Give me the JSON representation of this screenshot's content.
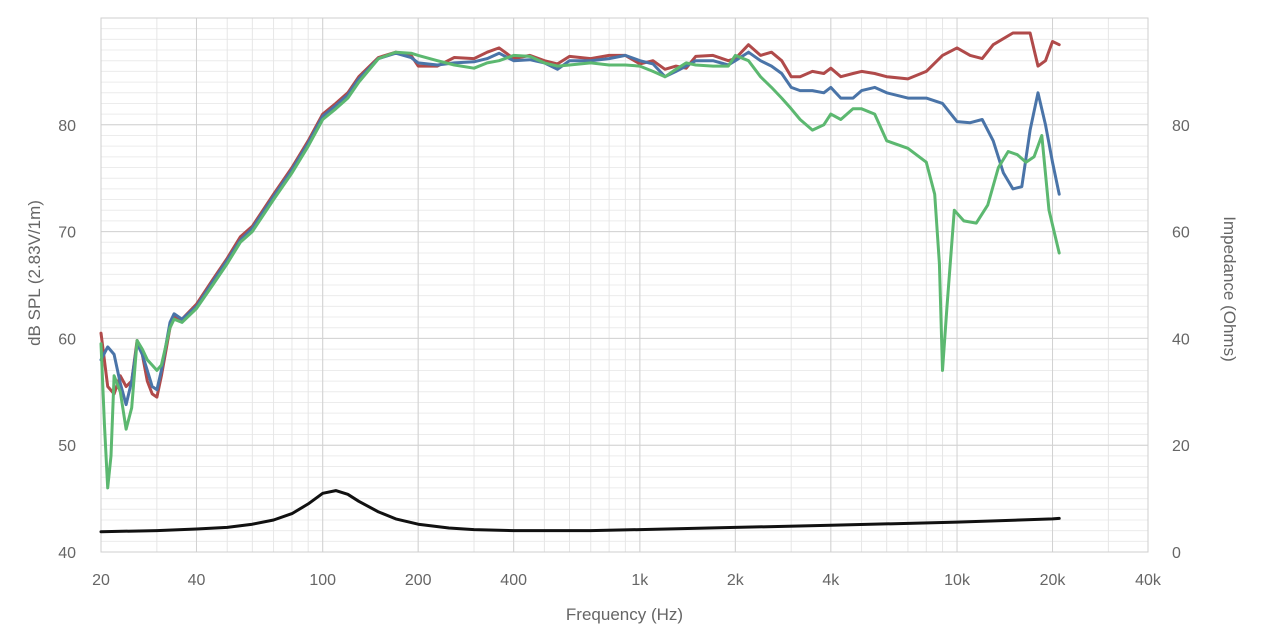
{
  "chart_data": {
    "type": "line",
    "title": "",
    "xlabel": "Frequency (Hz)",
    "ylabel": "dB SPL  (2.83V/1m)",
    "y2label": "Impedance (Ohms)",
    "x_scale": "log",
    "xlim": [
      20,
      40000
    ],
    "ylim": [
      40,
      90
    ],
    "y2lim": [
      0,
      100
    ],
    "grid": true,
    "legend": "none",
    "x_ticks": [
      20,
      40,
      100,
      200,
      400,
      1000,
      2000,
      4000,
      10000,
      20000,
      40000
    ],
    "x_tick_labels": [
      "20",
      "40",
      "100",
      "200",
      "400",
      "1k",
      "2k",
      "4k",
      "10k",
      "20k",
      "40k"
    ],
    "y_ticks": [
      40,
      50,
      60,
      70,
      80
    ],
    "y_tick_labels": [
      "40",
      "50",
      "60",
      "70",
      "80"
    ],
    "y2_ticks": [
      0,
      20,
      40,
      60,
      80
    ],
    "y2_tick_labels": [
      "0",
      "20",
      "40",
      "60",
      "80"
    ],
    "series": [
      {
        "color": "#b04a4a",
        "axis": "left",
        "points": [
          [
            20,
            60.5
          ],
          [
            21,
            55.5
          ],
          [
            22,
            54.8
          ],
          [
            23,
            56.5
          ],
          [
            24,
            55.5
          ],
          [
            25,
            56.0
          ],
          [
            26,
            59.8
          ],
          [
            27,
            58.5
          ],
          [
            28,
            56.0
          ],
          [
            29,
            54.8
          ],
          [
            30,
            54.5
          ],
          [
            31,
            56.5
          ],
          [
            33,
            61.0
          ],
          [
            34,
            62.0
          ],
          [
            36,
            61.8
          ],
          [
            40,
            63.2
          ],
          [
            45,
            65.5
          ],
          [
            50,
            67.5
          ],
          [
            55,
            69.5
          ],
          [
            60,
            70.5
          ],
          [
            70,
            73.5
          ],
          [
            80,
            76.0
          ],
          [
            90,
            78.5
          ],
          [
            100,
            81.0
          ],
          [
            110,
            82.0
          ],
          [
            120,
            83.0
          ],
          [
            130,
            84.5
          ],
          [
            150,
            86.3
          ],
          [
            170,
            86.8
          ],
          [
            190,
            86.5
          ],
          [
            200,
            85.5
          ],
          [
            230,
            85.5
          ],
          [
            260,
            86.3
          ],
          [
            300,
            86.2
          ],
          [
            330,
            86.8
          ],
          [
            360,
            87.2
          ],
          [
            400,
            86.2
          ],
          [
            450,
            86.5
          ],
          [
            500,
            86.0
          ],
          [
            550,
            85.7
          ],
          [
            600,
            86.4
          ],
          [
            700,
            86.2
          ],
          [
            800,
            86.5
          ],
          [
            900,
            86.5
          ],
          [
            1000,
            85.7
          ],
          [
            1100,
            86.0
          ],
          [
            1200,
            85.2
          ],
          [
            1300,
            85.5
          ],
          [
            1400,
            85.3
          ],
          [
            1500,
            86.4
          ],
          [
            1700,
            86.5
          ],
          [
            1900,
            86.0
          ],
          [
            2000,
            86.2
          ],
          [
            2200,
            87.5
          ],
          [
            2400,
            86.5
          ],
          [
            2600,
            86.8
          ],
          [
            2800,
            86.0
          ],
          [
            3000,
            84.5
          ],
          [
            3200,
            84.5
          ],
          [
            3500,
            85.0
          ],
          [
            3800,
            84.8
          ],
          [
            4000,
            85.3
          ],
          [
            4300,
            84.5
          ],
          [
            4700,
            84.8
          ],
          [
            5000,
            85.0
          ],
          [
            5500,
            84.8
          ],
          [
            6000,
            84.5
          ],
          [
            7000,
            84.3
          ],
          [
            8000,
            85.0
          ],
          [
            9000,
            86.5
          ],
          [
            10000,
            87.2
          ],
          [
            11000,
            86.5
          ],
          [
            12000,
            86.2
          ],
          [
            13000,
            87.5
          ],
          [
            15000,
            88.6
          ],
          [
            17000,
            88.6
          ],
          [
            18000,
            85.5
          ],
          [
            19000,
            86.0
          ],
          [
            20000,
            87.8
          ],
          [
            21000,
            87.5
          ]
        ]
      },
      {
        "color": "#4a74a8",
        "axis": "left",
        "points": [
          [
            20,
            58.0
          ],
          [
            21,
            59.2
          ],
          [
            22,
            58.5
          ],
          [
            23,
            55.8
          ],
          [
            24,
            53.8
          ],
          [
            25,
            56.0
          ],
          [
            26,
            59.5
          ],
          [
            27,
            58.5
          ],
          [
            28,
            57.0
          ],
          [
            29,
            55.5
          ],
          [
            30,
            55.2
          ],
          [
            31,
            57.0
          ],
          [
            33,
            61.5
          ],
          [
            34,
            62.3
          ],
          [
            36,
            61.8
          ],
          [
            40,
            63.0
          ],
          [
            45,
            65.3
          ],
          [
            50,
            67.3
          ],
          [
            55,
            69.2
          ],
          [
            60,
            70.3
          ],
          [
            70,
            73.3
          ],
          [
            80,
            75.8
          ],
          [
            90,
            78.3
          ],
          [
            100,
            80.8
          ],
          [
            110,
            81.8
          ],
          [
            120,
            82.8
          ],
          [
            130,
            84.3
          ],
          [
            150,
            86.2
          ],
          [
            170,
            86.7
          ],
          [
            190,
            86.3
          ],
          [
            200,
            85.8
          ],
          [
            230,
            85.6
          ],
          [
            260,
            85.8
          ],
          [
            300,
            85.9
          ],
          [
            330,
            86.2
          ],
          [
            360,
            86.7
          ],
          [
            400,
            86.0
          ],
          [
            450,
            86.1
          ],
          [
            500,
            85.8
          ],
          [
            550,
            85.2
          ],
          [
            600,
            86.0
          ],
          [
            700,
            86.0
          ],
          [
            800,
            86.2
          ],
          [
            900,
            86.5
          ],
          [
            1000,
            86.0
          ],
          [
            1100,
            85.7
          ],
          [
            1200,
            84.5
          ],
          [
            1300,
            85.0
          ],
          [
            1400,
            85.5
          ],
          [
            1500,
            86.0
          ],
          [
            1700,
            86.0
          ],
          [
            1900,
            85.6
          ],
          [
            2000,
            86.0
          ],
          [
            2200,
            86.8
          ],
          [
            2400,
            86.0
          ],
          [
            2600,
            85.5
          ],
          [
            2800,
            84.8
          ],
          [
            3000,
            83.5
          ],
          [
            3200,
            83.2
          ],
          [
            3500,
            83.2
          ],
          [
            3800,
            83.0
          ],
          [
            4000,
            83.5
          ],
          [
            4300,
            82.5
          ],
          [
            4700,
            82.5
          ],
          [
            5000,
            83.2
          ],
          [
            5500,
            83.5
          ],
          [
            6000,
            83.0
          ],
          [
            7000,
            82.5
          ],
          [
            8000,
            82.5
          ],
          [
            9000,
            82.0
          ],
          [
            10000,
            80.3
          ],
          [
            11000,
            80.2
          ],
          [
            12000,
            80.5
          ],
          [
            13000,
            78.5
          ],
          [
            14000,
            75.5
          ],
          [
            15000,
            74.0
          ],
          [
            16000,
            74.2
          ],
          [
            17000,
            79.5
          ],
          [
            18000,
            83.0
          ],
          [
            19000,
            80.0
          ],
          [
            20000,
            76.5
          ],
          [
            21000,
            73.5
          ]
        ]
      },
      {
        "color": "#5cb870",
        "axis": "left",
        "points": [
          [
            20,
            59.5
          ],
          [
            20.5,
            52.0
          ],
          [
            21,
            46.0
          ],
          [
            21.5,
            49.0
          ],
          [
            22,
            56.5
          ],
          [
            23,
            55.0
          ],
          [
            24,
            51.5
          ],
          [
            25,
            53.5
          ],
          [
            26,
            59.8
          ],
          [
            27,
            59.0
          ],
          [
            28,
            58.0
          ],
          [
            29,
            57.5
          ],
          [
            30,
            57.0
          ],
          [
            31,
            57.5
          ],
          [
            33,
            61.0
          ],
          [
            34,
            61.8
          ],
          [
            36,
            61.5
          ],
          [
            40,
            62.8
          ],
          [
            45,
            65.0
          ],
          [
            50,
            67.0
          ],
          [
            55,
            69.0
          ],
          [
            60,
            70.0
          ],
          [
            70,
            73.0
          ],
          [
            80,
            75.5
          ],
          [
            90,
            78.0
          ],
          [
            100,
            80.5
          ],
          [
            110,
            81.5
          ],
          [
            120,
            82.5
          ],
          [
            130,
            84.0
          ],
          [
            150,
            86.2
          ],
          [
            170,
            86.8
          ],
          [
            190,
            86.7
          ],
          [
            200,
            86.5
          ],
          [
            230,
            86.0
          ],
          [
            260,
            85.6
          ],
          [
            300,
            85.3
          ],
          [
            330,
            85.8
          ],
          [
            360,
            86.0
          ],
          [
            400,
            86.5
          ],
          [
            450,
            86.4
          ],
          [
            500,
            85.8
          ],
          [
            550,
            85.5
          ],
          [
            600,
            85.6
          ],
          [
            700,
            85.8
          ],
          [
            800,
            85.6
          ],
          [
            900,
            85.6
          ],
          [
            1000,
            85.5
          ],
          [
            1100,
            85.0
          ],
          [
            1200,
            84.5
          ],
          [
            1300,
            85.2
          ],
          [
            1400,
            85.8
          ],
          [
            1500,
            85.6
          ],
          [
            1700,
            85.5
          ],
          [
            1900,
            85.5
          ],
          [
            2000,
            86.5
          ],
          [
            2200,
            86.0
          ],
          [
            2400,
            84.5
          ],
          [
            2600,
            83.5
          ],
          [
            2800,
            82.5
          ],
          [
            3000,
            81.5
          ],
          [
            3200,
            80.5
          ],
          [
            3500,
            79.5
          ],
          [
            3800,
            80.0
          ],
          [
            4000,
            81.0
          ],
          [
            4300,
            80.5
          ],
          [
            4700,
            81.5
          ],
          [
            5000,
            81.5
          ],
          [
            5500,
            81.0
          ],
          [
            6000,
            78.5
          ],
          [
            7000,
            77.8
          ],
          [
            8000,
            76.5
          ],
          [
            8500,
            73.5
          ],
          [
            8800,
            67.0
          ],
          [
            9000,
            57.0
          ],
          [
            9300,
            63.0
          ],
          [
            9800,
            72.0
          ],
          [
            10500,
            71.0
          ],
          [
            11500,
            70.8
          ],
          [
            12500,
            72.5
          ],
          [
            13500,
            76.0
          ],
          [
            14500,
            77.5
          ],
          [
            15500,
            77.2
          ],
          [
            16500,
            76.5
          ],
          [
            17500,
            77.0
          ],
          [
            18500,
            79.0
          ],
          [
            19500,
            72.0
          ],
          [
            21000,
            68.0
          ]
        ]
      },
      {
        "color": "#111111",
        "axis": "right",
        "points": [
          [
            20,
            3.8
          ],
          [
            30,
            4.0
          ],
          [
            40,
            4.3
          ],
          [
            50,
            4.6
          ],
          [
            60,
            5.2
          ],
          [
            70,
            6.0
          ],
          [
            80,
            7.2
          ],
          [
            90,
            9.0
          ],
          [
            100,
            11.0
          ],
          [
            110,
            11.5
          ],
          [
            120,
            10.8
          ],
          [
            130,
            9.5
          ],
          [
            150,
            7.5
          ],
          [
            170,
            6.2
          ],
          [
            200,
            5.2
          ],
          [
            250,
            4.5
          ],
          [
            300,
            4.2
          ],
          [
            400,
            4.0
          ],
          [
            500,
            4.0
          ],
          [
            700,
            4.0
          ],
          [
            1000,
            4.2
          ],
          [
            2000,
            4.6
          ],
          [
            4000,
            5.0
          ],
          [
            10000,
            5.6
          ],
          [
            20000,
            6.2
          ],
          [
            21000,
            6.3
          ]
        ]
      }
    ]
  }
}
